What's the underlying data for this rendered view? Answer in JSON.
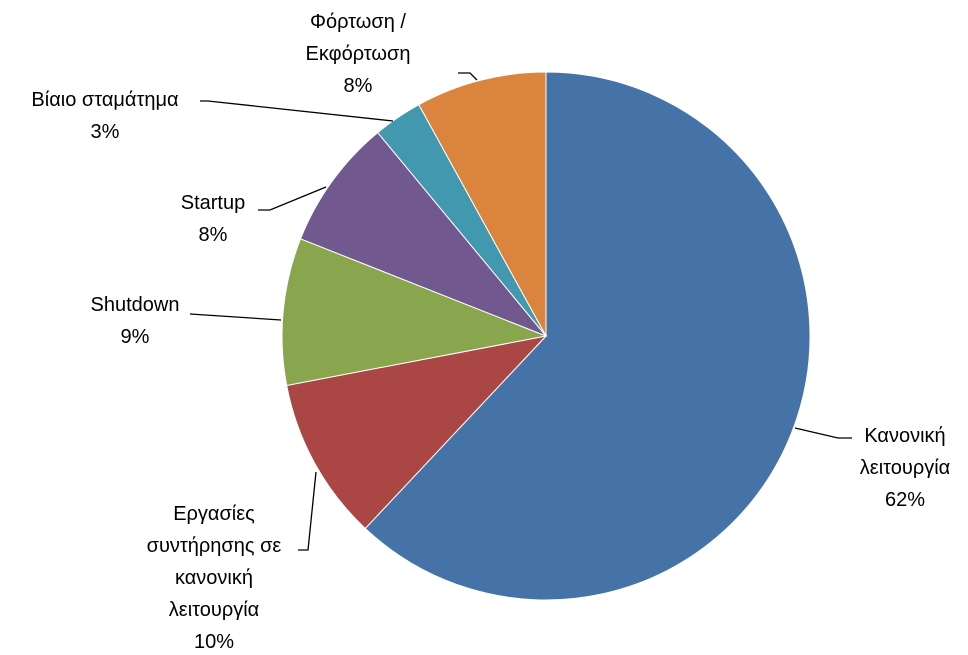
{
  "chart_data": {
    "type": "pie",
    "categories": [
      "Κανονική λειτουργία",
      "Εργασίες συντήρησης σε κανονική λειτουργία",
      "Shutdown",
      "Startup",
      "Βίαιο σταμάτημα",
      "Φόρτωση / Εκφόρτωση"
    ],
    "values": [
      62,
      10,
      9,
      8,
      3,
      8
    ],
    "value_labels": [
      "62%",
      "10%",
      "9%",
      "8%",
      "3%",
      "8%"
    ],
    "colors": [
      "#4572a7",
      "#aa4643",
      "#89a54e",
      "#71588f",
      "#4198af",
      "#db843d"
    ]
  }
}
